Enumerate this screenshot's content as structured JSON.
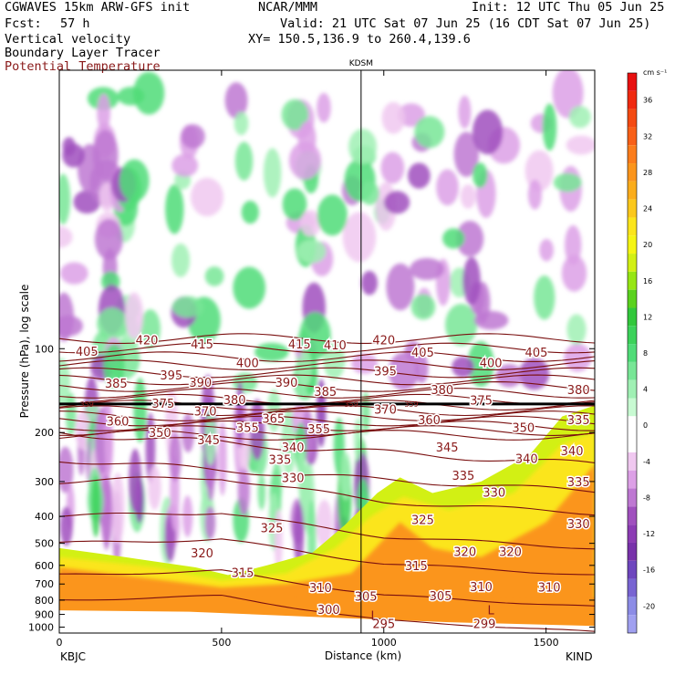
{
  "header": {
    "model_title": "CGWAVES 15km ARW-GFS init",
    "center": "NCAR/MMM",
    "init": "Init: 12 UTC Thu 05 Jun 25",
    "fcst_label": "Fcst:",
    "fcst_value": "57 h",
    "valid": "Valid: 21 UTC Sat 07 Jun 25 (16 CDT Sat 07 Jun 25)",
    "field1": "Vertical velocity",
    "field2": "Boundary Layer Tracer",
    "field3": "Potential Temperature",
    "xy": "XY= 150.5,136.9 to 260.4,139.6"
  },
  "colors": {
    "theta_contour": "#7a1010",
    "theta_label": "#8a1a1a",
    "frame": "#000000"
  },
  "chart_data": {
    "type": "heatmap",
    "title": "",
    "xlabel": "Distance (km)",
    "ylabel": "Pressure (hPa), log scale",
    "xlim": [
      0,
      1650
    ],
    "ylim": [
      1050,
      10
    ],
    "y_scale": "log",
    "x_ticks": [
      0,
      500,
      1000,
      1500
    ],
    "y_ticks": [
      100,
      200,
      300,
      400,
      500,
      600,
      700,
      800,
      900,
      1000
    ],
    "station_left": "KBJC",
    "station_right": "KIND",
    "station_mid": {
      "label": "KDSM",
      "x_km": 930
    },
    "colorbar": {
      "units": "cm s⁻¹",
      "position": "right",
      "tick_labels": [
        36,
        32,
        28,
        24,
        20,
        16,
        12,
        8,
        4,
        0,
        -4,
        -8,
        -12,
        -16,
        -20
      ],
      "levels": [
        {
          "value": 38,
          "color": "#e81010"
        },
        {
          "value": 36,
          "color": "#f02a10"
        },
        {
          "value": 34,
          "color": "#f44a12"
        },
        {
          "value": 32,
          "color": "#f86018"
        },
        {
          "value": 30,
          "color": "#fb7d1c"
        },
        {
          "value": 28,
          "color": "#fb951c"
        },
        {
          "value": 26,
          "color": "#fbad1c"
        },
        {
          "value": 24,
          "color": "#fbc81c"
        },
        {
          "value": 22,
          "color": "#fbe51c"
        },
        {
          "value": 20,
          "color": "#f5f514"
        },
        {
          "value": 18,
          "color": "#d2f014"
        },
        {
          "value": 16,
          "color": "#96e614"
        },
        {
          "value": 14,
          "color": "#5ad21e"
        },
        {
          "value": 12,
          "color": "#32c83c"
        },
        {
          "value": 10,
          "color": "#3cd25a"
        },
        {
          "value": 8,
          "color": "#50dc78"
        },
        {
          "value": 6,
          "color": "#78e696"
        },
        {
          "value": 4,
          "color": "#a0f0b4"
        },
        {
          "value": 2,
          "color": "#c8fad2"
        },
        {
          "value": 0,
          "color": "#ffffff"
        },
        {
          "value": -2,
          "color": "#ffffff"
        },
        {
          "value": -4,
          "color": "#f0c8f0"
        },
        {
          "value": -6,
          "color": "#dca0e6"
        },
        {
          "value": -8,
          "color": "#be78d2"
        },
        {
          "value": -10,
          "color": "#a050be"
        },
        {
          "value": -12,
          "color": "#8c3cb4"
        },
        {
          "value": -14,
          "color": "#7832aa"
        },
        {
          "value": -16,
          "color": "#6e46be"
        },
        {
          "value": -18,
          "color": "#7864d2"
        },
        {
          "value": -20,
          "color": "#8c8ce6"
        },
        {
          "value": -22,
          "color": "#a0a0f0"
        }
      ]
    },
    "theta_labels": [
      {
        "x": 270,
        "p": 93,
        "v": 420
      },
      {
        "x": 440,
        "p": 96,
        "v": 415
      },
      {
        "x": 740,
        "p": 96,
        "v": 415
      },
      {
        "x": 850,
        "p": 97,
        "v": 410
      },
      {
        "x": 1000,
        "p": 93,
        "v": 420
      },
      {
        "x": 1120,
        "p": 103,
        "v": 405
      },
      {
        "x": 1470,
        "p": 103,
        "v": 405
      },
      {
        "x": 85,
        "p": 102,
        "v": 405
      },
      {
        "x": 345,
        "p": 124,
        "v": 395
      },
      {
        "x": 580,
        "p": 112,
        "v": 400
      },
      {
        "x": 1330,
        "p": 112,
        "v": 400
      },
      {
        "x": 1005,
        "p": 120,
        "v": 395
      },
      {
        "x": 175,
        "p": 133,
        "v": 385
      },
      {
        "x": 435,
        "p": 132,
        "v": 390
      },
      {
        "x": 700,
        "p": 132,
        "v": 390
      },
      {
        "x": 820,
        "p": 142,
        "v": 385
      },
      {
        "x": 1180,
        "p": 140,
        "v": 380
      },
      {
        "x": 540,
        "p": 152,
        "v": 380
      },
      {
        "x": 1600,
        "p": 140,
        "v": 380
      },
      {
        "x": 320,
        "p": 157,
        "v": 375
      },
      {
        "x": 1300,
        "p": 153,
        "v": 375
      },
      {
        "x": 450,
        "p": 167,
        "v": 370
      },
      {
        "x": 1005,
        "p": 165,
        "v": 370
      },
      {
        "x": 180,
        "p": 182,
        "v": 360
      },
      {
        "x": 660,
        "p": 178,
        "v": 365
      },
      {
        "x": 1140,
        "p": 180,
        "v": 360
      },
      {
        "x": 310,
        "p": 200,
        "v": 350
      },
      {
        "x": 580,
        "p": 192,
        "v": 355
      },
      {
        "x": 800,
        "p": 194,
        "v": 355
      },
      {
        "x": 1430,
        "p": 192,
        "v": 350
      },
      {
        "x": 460,
        "p": 212,
        "v": 345
      },
      {
        "x": 720,
        "p": 225,
        "v": 340
      },
      {
        "x": 1195,
        "p": 225,
        "v": 345
      },
      {
        "x": 1440,
        "p": 248,
        "v": 340
      },
      {
        "x": 1580,
        "p": 232,
        "v": 340
      },
      {
        "x": 1600,
        "p": 180,
        "v": 335
      },
      {
        "x": 680,
        "p": 250,
        "v": 335
      },
      {
        "x": 1245,
        "p": 285,
        "v": 335
      },
      {
        "x": 1600,
        "p": 300,
        "v": 335
      },
      {
        "x": 720,
        "p": 290,
        "v": 330
      },
      {
        "x": 1340,
        "p": 328,
        "v": 330
      },
      {
        "x": 1600,
        "p": 425,
        "v": 330
      },
      {
        "x": 655,
        "p": 440,
        "v": 325
      },
      {
        "x": 1120,
        "p": 410,
        "v": 325
      },
      {
        "x": 440,
        "p": 540,
        "v": 320
      },
      {
        "x": 1250,
        "p": 535,
        "v": 320
      },
      {
        "x": 1390,
        "p": 535,
        "v": 320
      },
      {
        "x": 565,
        "p": 635,
        "v": 315
      },
      {
        "x": 1100,
        "p": 600,
        "v": 315
      },
      {
        "x": 805,
        "p": 720,
        "v": 310
      },
      {
        "x": 1300,
        "p": 715,
        "v": 310
      },
      {
        "x": 1510,
        "p": 718,
        "v": 310
      },
      {
        "x": 1175,
        "p": 770,
        "v": 305
      },
      {
        "x": 945,
        "p": 775,
        "v": 305
      },
      {
        "x": 830,
        "p": 862,
        "v": 300
      },
      {
        "x": 1000,
        "p": 970,
        "v": 295
      },
      {
        "x": 1310,
        "p": 970,
        "v": 299
      }
    ],
    "tiny_labels": [
      {
        "x": 85,
        "p": 158,
        "v": "359"
      },
      {
        "x": 900,
        "p": 158,
        "v": "359"
      },
      {
        "x": 1085,
        "p": 158,
        "v": "359"
      }
    ],
    "tracer_labels": [
      {
        "x": 970,
        "p": 905,
        "v": "L"
      },
      {
        "x": 1330,
        "p": 865,
        "v": "L"
      }
    ]
  }
}
